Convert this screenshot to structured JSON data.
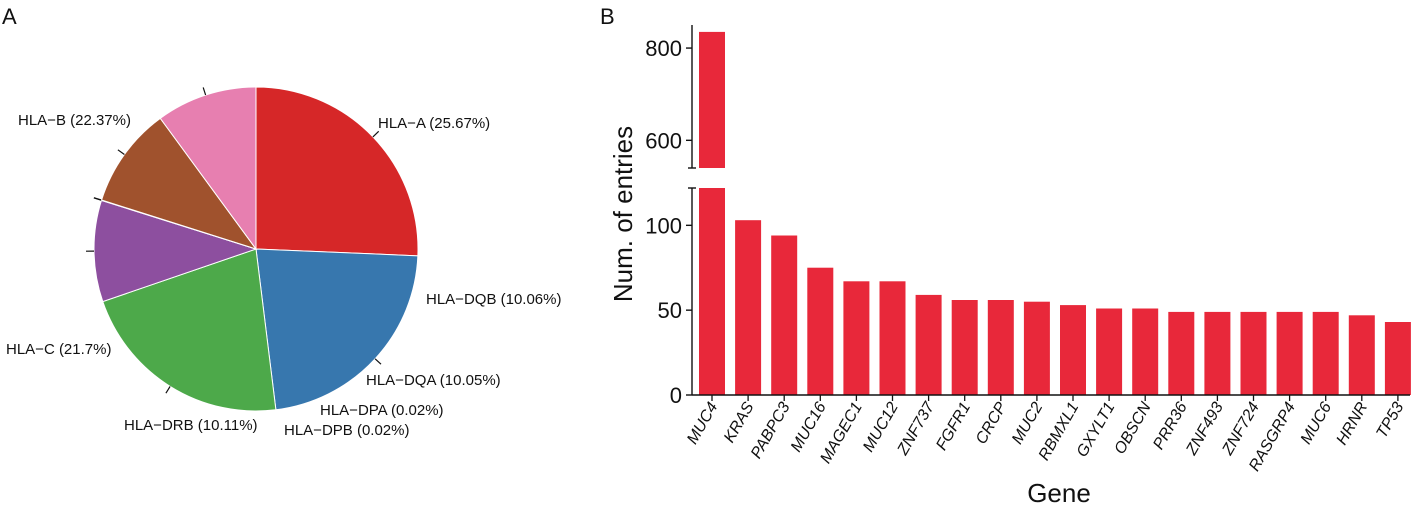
{
  "panels": {
    "left_label": "A",
    "right_label": "B"
  },
  "colors": {
    "HLA-A": "#d62728",
    "HLA-B": "#3777ae",
    "HLA-C": "#4da94a",
    "HLA-DRB": "#8d4f9f",
    "HLA-DPB": "#ff7f0e",
    "HLA-DPA": "#ffd92f",
    "HLA-DQA": "#a0522d",
    "HLA-DQB": "#e77fb0",
    "bar": "#e8283a"
  },
  "chart_data": [
    {
      "type": "pie",
      "slices": [
        {
          "name": "HLA-A",
          "value": 25.67,
          "label": "HLA−A (25.67%)"
        },
        {
          "name": "HLA-B",
          "value": 22.37,
          "label": "HLA−B (22.37%)"
        },
        {
          "name": "HLA-C",
          "value": 21.7,
          "label": "HLA−C (21.7%)"
        },
        {
          "name": "HLA-DRB",
          "value": 10.11,
          "label": "HLA−DRB (10.11%)"
        },
        {
          "name": "HLA-DPB",
          "value": 0.02,
          "label": "HLA−DPB (0.02%)"
        },
        {
          "name": "HLA-DPA",
          "value": 0.02,
          "label": "HLA−DPA (0.02%)"
        },
        {
          "name": "HLA-DQA",
          "value": 10.05,
          "label": "HLA−DQA (10.05%)"
        },
        {
          "name": "HLA-DQB",
          "value": 10.06,
          "label": "HLA−DQB (10.06%)"
        }
      ]
    },
    {
      "type": "bar",
      "xlabel": "Gene",
      "ylabel": "Num. of entries",
      "categories": [
        "MUC4",
        "KRAS",
        "PABPC3",
        "MUC16",
        "MAGEC1",
        "MUC12",
        "ZNF737",
        "FGFR1",
        "CRCP",
        "MUC2",
        "RBMXL1",
        "GXYLT1",
        "OBSCN",
        "PRR36",
        "ZNF493",
        "ZNF724",
        "RASGRP4",
        "MUC6",
        "HRNR",
        "TP53"
      ],
      "values": [
        835,
        103,
        94,
        75,
        67,
        67,
        59,
        56,
        56,
        55,
        53,
        51,
        51,
        49,
        49,
        49,
        49,
        49,
        47,
        43
      ],
      "axis_break": {
        "lower_range": [
          0,
          122
        ],
        "upper_range": [
          540,
          850
        ]
      },
      "yticks_lower": [
        "0",
        "50",
        "100"
      ],
      "yticks_upper": [
        "600",
        "800"
      ],
      "grid": false
    }
  ]
}
